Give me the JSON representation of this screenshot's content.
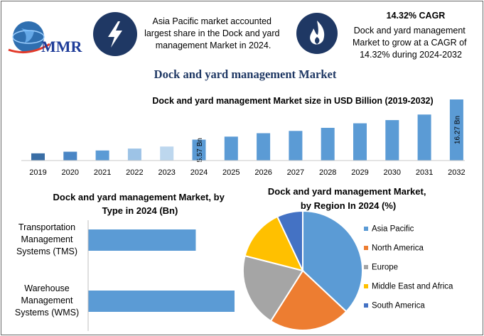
{
  "brand": {
    "logo_text": "MMR"
  },
  "header": {
    "card1": {
      "icon": "lightning-bolt-icon",
      "lines": [
        "Asia Pacific market accounted",
        "largest share in the Dock and yard",
        "management Market  in 2024."
      ]
    },
    "card2": {
      "icon": "flame-icon",
      "title": "14.32% CAGR",
      "lines": [
        "Dock and yard management",
        "Market to grow at a CAGR of",
        "14.32%  during 2024-2032"
      ]
    }
  },
  "main_title": "Dock and yard management Market",
  "colors": {
    "accent": "#5b9bd5",
    "navy": "#1f3864",
    "bar_light": "#9dc3e6",
    "bar_lighter": "#bdd7ee",
    "orange": "#ed7d31",
    "gray": "#a5a5a5",
    "yellow": "#ffc000",
    "darkblue": "#4472c4"
  },
  "chart_data": [
    {
      "type": "bar",
      "title": "Dock and yard management Market size in USD Billion (2019-2032)",
      "categories": [
        "2019",
        "2020",
        "2021",
        "2022",
        "2023",
        "2024",
        "2025",
        "2026",
        "2027",
        "2028",
        "2029",
        "2030",
        "2031",
        "2032"
      ],
      "values": [
        1.92,
        2.35,
        2.68,
        3.19,
        3.73,
        5.57,
        6.37,
        7.28,
        7.89,
        8.71,
        9.92,
        10.77,
        12.25,
        16.27
      ],
      "data_labels": {
        "2024": "5.57 Bn",
        "2032": "16.27 Bn"
      },
      "bar_colors": [
        "#3a6ea5",
        "#4a86c5",
        "#5b9bd5",
        "#9dc3e6",
        "#bdd7ee",
        "#5b9bd5",
        "#5b9bd5",
        "#5b9bd5",
        "#5b9bd5",
        "#5b9bd5",
        "#5b9bd5",
        "#5b9bd5",
        "#5b9bd5",
        "#5b9bd5"
      ],
      "ylim": [
        0,
        16.27
      ],
      "grid": false
    },
    {
      "type": "bar",
      "orientation": "horizontal",
      "title": [
        "Dock and yard management Market, by",
        "Type in 2024 (Bn)"
      ],
      "categories": [
        [
          "Transportation",
          "Management",
          "Systems (TMS)"
        ],
        [
          "Warehouse",
          "Management",
          "Systems (WMS)"
        ]
      ],
      "values": [
        2.36,
        3.21
      ],
      "xlim": [
        0,
        3.21
      ],
      "grid": false
    },
    {
      "type": "pie",
      "title": [
        "Dock and yard management Market,",
        "by Region In 2024 (%)"
      ],
      "labels": [
        "Asia Pacific",
        "North America",
        "Europe",
        "Middle East and Africa",
        "South America"
      ],
      "values": [
        37,
        22,
        20,
        14,
        7
      ],
      "colors": [
        "#5b9bd5",
        "#ed7d31",
        "#a5a5a5",
        "#ffc000",
        "#4472c4"
      ],
      "legend_position": "right"
    }
  ]
}
